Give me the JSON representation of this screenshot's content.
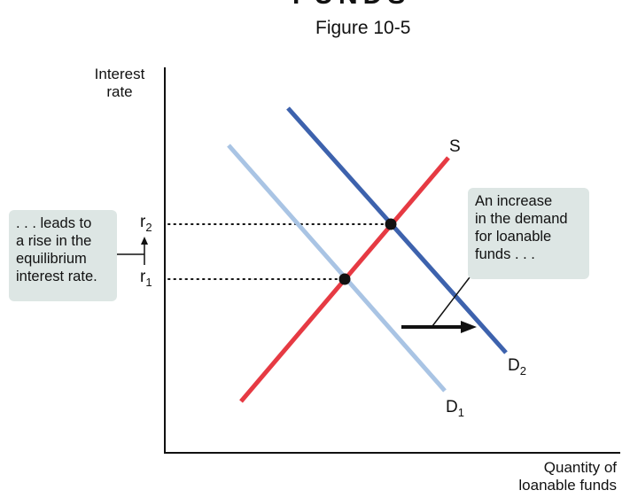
{
  "header": {
    "cutoff_title": "FUNDS",
    "figure_label": "Figure 10-5"
  },
  "axes": {
    "y_label_line1": "Interest",
    "y_label_line2": "rate",
    "x_label_line1": "Quantity of",
    "x_label_line2": "loanable funds"
  },
  "curves": {
    "supply": "S",
    "demand1": "D",
    "demand1_sub": "1",
    "demand2": "D",
    "demand2_sub": "2"
  },
  "ticks": {
    "r1": "r",
    "r1_sub": "1",
    "r2": "r",
    "r2_sub": "2"
  },
  "annotations": {
    "left": [
      ". . . leads to",
      "a rise in the",
      "equilibrium",
      "interest rate."
    ],
    "right": [
      "An increase",
      "in the demand",
      "for loanable",
      "funds . . ."
    ]
  },
  "colors": {
    "supply": "#e63a43",
    "demand1": "#a9c4e4",
    "demand2": "#3d62ad",
    "callout": "#dde6e4"
  }
}
